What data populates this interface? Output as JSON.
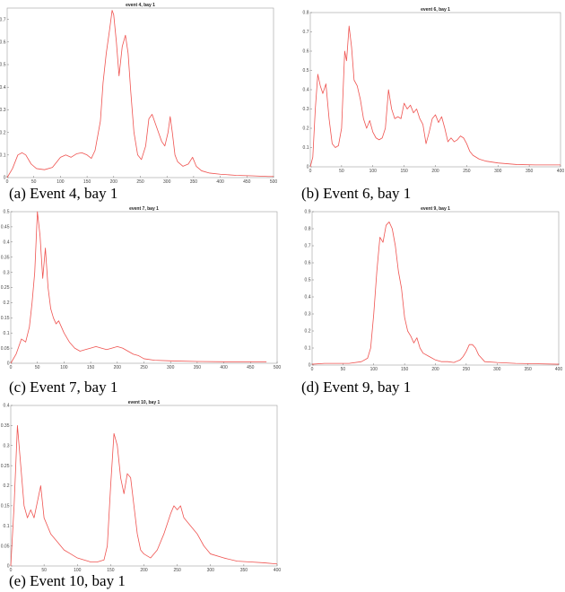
{
  "chart_data": [
    {
      "type": "line",
      "title": "event 4, bay 1",
      "caption": "(a)  Event 4, bay 1",
      "color": "#ef5350",
      "xlim": [
        0,
        500
      ],
      "ylim": [
        0,
        0.75
      ],
      "xticks": [
        0,
        50,
        100,
        150,
        200,
        250,
        300,
        350,
        400,
        450,
        500
      ],
      "yticks": [
        0,
        0.1,
        0.2,
        0.3,
        0.4,
        0.5,
        0.6,
        0.7
      ],
      "xticklabels": [
        "0",
        "50",
        "100",
        "150",
        "200",
        "250",
        "300",
        "350",
        "400",
        "450",
        "500"
      ],
      "yticklabels": [
        "0",
        "0.1",
        "0.2",
        "0.3",
        "0.4",
        "0.5",
        "0.6",
        "0.7"
      ],
      "series": [
        {
          "x": [
            0,
            10,
            20,
            28,
            35,
            45,
            55,
            70,
            85,
            100,
            110,
            120,
            130,
            140,
            150,
            158,
            165,
            175,
            180,
            186,
            192,
            197,
            200,
            205,
            210,
            216,
            222,
            227,
            232,
            238,
            245,
            252,
            260,
            266,
            272,
            278,
            284,
            290,
            296,
            302,
            306,
            310,
            315,
            320,
            330,
            340,
            348,
            355,
            365,
            380,
            400,
            430,
            460,
            490,
            500
          ],
          "y": [
            0,
            0.04,
            0.1,
            0.11,
            0.1,
            0.06,
            0.04,
            0.035,
            0.045,
            0.09,
            0.1,
            0.09,
            0.105,
            0.11,
            0.1,
            0.085,
            0.12,
            0.25,
            0.42,
            0.55,
            0.65,
            0.74,
            0.72,
            0.6,
            0.45,
            0.58,
            0.63,
            0.55,
            0.38,
            0.2,
            0.1,
            0.08,
            0.14,
            0.26,
            0.28,
            0.24,
            0.2,
            0.16,
            0.14,
            0.2,
            0.27,
            0.2,
            0.1,
            0.07,
            0.05,
            0.06,
            0.09,
            0.05,
            0.03,
            0.02,
            0.015,
            0.01,
            0.008,
            0.005,
            0.005
          ]
        }
      ]
    },
    {
      "type": "line",
      "title": "event 6, bay 1",
      "caption": "(b)  Event 6, bay 1",
      "color": "#ef5350",
      "xlim": [
        0,
        400
      ],
      "ylim": [
        0,
        0.8
      ],
      "xticks": [
        0,
        50,
        100,
        150,
        200,
        250,
        300,
        350,
        400
      ],
      "yticks": [
        0,
        0.1,
        0.2,
        0.3,
        0.4,
        0.5,
        0.6,
        0.7,
        0.8
      ],
      "xticklabels": [
        "0",
        "50",
        "100",
        "150",
        "200",
        "250",
        "300",
        "350",
        "400"
      ],
      "yticklabels": [
        "0",
        "0.1",
        "0.2",
        "0.3",
        "0.4",
        "0.5",
        "0.6",
        "0.7",
        "0.8"
      ],
      "series": [
        {
          "x": [
            0,
            4,
            8,
            12,
            16,
            20,
            25,
            30,
            35,
            40,
            45,
            50,
            55,
            58,
            62,
            66,
            70,
            75,
            80,
            85,
            90,
            95,
            100,
            105,
            110,
            115,
            120,
            125,
            130,
            135,
            140,
            145,
            150,
            155,
            160,
            165,
            170,
            175,
            180,
            185,
            190,
            195,
            200,
            205,
            210,
            215,
            220,
            225,
            230,
            235,
            240,
            245,
            250,
            255,
            260,
            270,
            280,
            300,
            330,
            360,
            400
          ],
          "y": [
            0,
            0.05,
            0.3,
            0.48,
            0.42,
            0.38,
            0.43,
            0.25,
            0.12,
            0.1,
            0.11,
            0.2,
            0.6,
            0.55,
            0.73,
            0.62,
            0.45,
            0.42,
            0.35,
            0.25,
            0.2,
            0.24,
            0.18,
            0.15,
            0.14,
            0.15,
            0.2,
            0.4,
            0.3,
            0.25,
            0.26,
            0.25,
            0.33,
            0.3,
            0.32,
            0.28,
            0.3,
            0.25,
            0.22,
            0.12,
            0.18,
            0.25,
            0.27,
            0.23,
            0.26,
            0.2,
            0.13,
            0.15,
            0.13,
            0.14,
            0.16,
            0.15,
            0.12,
            0.08,
            0.06,
            0.04,
            0.03,
            0.02,
            0.012,
            0.01,
            0.01
          ]
        }
      ]
    },
    {
      "type": "line",
      "title": "event 7, bay 1",
      "caption": "(c)  Event 7, bay 1",
      "color": "#ef5350",
      "xlim": [
        0,
        500
      ],
      "ylim": [
        0,
        0.5
      ],
      "xticks": [
        0,
        50,
        100,
        150,
        200,
        250,
        300,
        350,
        400,
        450,
        500
      ],
      "yticks": [
        0,
        0.05,
        0.1,
        0.15,
        0.2,
        0.25,
        0.3,
        0.35,
        0.4,
        0.45,
        0.5
      ],
      "xticklabels": [
        "0",
        "50",
        "100",
        "150",
        "200",
        "250",
        "300",
        "350",
        "400",
        "450",
        "500"
      ],
      "yticklabels": [
        "0",
        "0.05",
        "0.1",
        "0.15",
        "0.2",
        "0.25",
        "0.3",
        "0.35",
        "0.4",
        "0.45",
        "0.5"
      ],
      "series": [
        {
          "x": [
            0,
            10,
            20,
            28,
            35,
            40,
            45,
            50,
            55,
            60,
            65,
            70,
            75,
            80,
            85,
            90,
            100,
            110,
            120,
            130,
            140,
            150,
            160,
            170,
            180,
            190,
            200,
            210,
            220,
            230,
            240,
            250,
            270,
            300,
            350,
            400,
            450,
            480
          ],
          "y": [
            0,
            0.03,
            0.08,
            0.07,
            0.12,
            0.2,
            0.3,
            0.5,
            0.42,
            0.28,
            0.38,
            0.25,
            0.18,
            0.15,
            0.13,
            0.14,
            0.1,
            0.07,
            0.05,
            0.04,
            0.045,
            0.05,
            0.055,
            0.05,
            0.045,
            0.05,
            0.055,
            0.05,
            0.04,
            0.03,
            0.025,
            0.015,
            0.01,
            0.008,
            0.006,
            0.005,
            0.005,
            0.005
          ]
        }
      ]
    },
    {
      "type": "line",
      "title": "event 9, bay 1",
      "caption": "(d)  Event 9, bay 1",
      "color": "#ef5350",
      "xlim": [
        0,
        400
      ],
      "ylim": [
        0,
        0.9
      ],
      "xticks": [
        0,
        50,
        100,
        150,
        200,
        250,
        300,
        350,
        400
      ],
      "yticks": [
        0,
        0.1,
        0.2,
        0.3,
        0.4,
        0.5,
        0.6,
        0.7,
        0.8,
        0.9
      ],
      "xticklabels": [
        "0",
        "50",
        "100",
        "150",
        "200",
        "250",
        "300",
        "350",
        "400"
      ],
      "yticklabels": [
        "0",
        "0.1",
        "0.2",
        "0.3",
        "0.4",
        "0.5",
        "0.6",
        "0.7",
        "0.8",
        "0.9"
      ],
      "series": [
        {
          "x": [
            0,
            20,
            40,
            60,
            80,
            90,
            95,
            100,
            105,
            110,
            115,
            120,
            125,
            130,
            135,
            140,
            145,
            150,
            155,
            160,
            165,
            170,
            175,
            180,
            190,
            200,
            210,
            220,
            230,
            240,
            245,
            250,
            255,
            260,
            265,
            270,
            280,
            300,
            330,
            360,
            400
          ],
          "y": [
            0.005,
            0.01,
            0.01,
            0.01,
            0.02,
            0.04,
            0.1,
            0.3,
            0.55,
            0.75,
            0.72,
            0.82,
            0.84,
            0.8,
            0.7,
            0.55,
            0.45,
            0.28,
            0.2,
            0.17,
            0.13,
            0.16,
            0.1,
            0.07,
            0.05,
            0.03,
            0.02,
            0.02,
            0.015,
            0.03,
            0.05,
            0.08,
            0.12,
            0.12,
            0.1,
            0.06,
            0.02,
            0.015,
            0.01,
            0.008,
            0.005
          ]
        }
      ]
    },
    {
      "type": "line",
      "title": "event 10, bay 1",
      "caption": "(e)  Event 10, bay 1",
      "color": "#ef5350",
      "xlim": [
        0,
        400
      ],
      "ylim": [
        0,
        0.4
      ],
      "xticks": [
        0,
        50,
        100,
        150,
        200,
        250,
        300,
        350,
        400
      ],
      "yticks": [
        0,
        0.05,
        0.1,
        0.15,
        0.2,
        0.25,
        0.3,
        0.35,
        0.4
      ],
      "xticklabels": [
        "0",
        "50",
        "100",
        "150",
        "200",
        "250",
        "300",
        "350",
        "400"
      ],
      "yticklabels": [
        "0",
        "0.05",
        "0.1",
        "0.15",
        "0.2",
        "0.25",
        "0.3",
        "0.35",
        "0.4"
      ],
      "series": [
        {
          "x": [
            0,
            5,
            10,
            15,
            20,
            25,
            30,
            35,
            40,
            45,
            50,
            55,
            60,
            70,
            80,
            90,
            100,
            110,
            120,
            130,
            140,
            145,
            150,
            155,
            160,
            165,
            170,
            175,
            180,
            185,
            190,
            195,
            200,
            210,
            220,
            230,
            240,
            245,
            250,
            255,
            260,
            270,
            280,
            290,
            300,
            320,
            340,
            360,
            380,
            400
          ],
          "y": [
            0,
            0.15,
            0.35,
            0.25,
            0.15,
            0.12,
            0.14,
            0.12,
            0.16,
            0.2,
            0.12,
            0.1,
            0.08,
            0.06,
            0.04,
            0.03,
            0.02,
            0.015,
            0.01,
            0.01,
            0.015,
            0.05,
            0.2,
            0.33,
            0.3,
            0.22,
            0.18,
            0.23,
            0.22,
            0.15,
            0.08,
            0.04,
            0.03,
            0.02,
            0.04,
            0.08,
            0.13,
            0.15,
            0.14,
            0.15,
            0.12,
            0.1,
            0.08,
            0.05,
            0.03,
            0.02,
            0.012,
            0.01,
            0.008,
            0.005
          ]
        }
      ]
    }
  ]
}
